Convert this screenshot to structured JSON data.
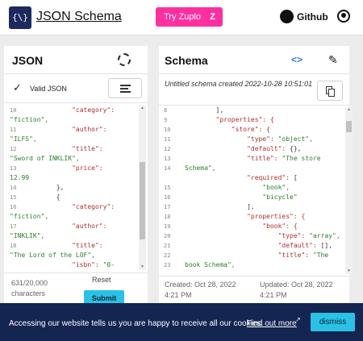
{
  "header": {
    "logo_glyph": "{\\}",
    "brand": "JSON Schema",
    "try_button": "Try Zuplo",
    "try_icon": "Z",
    "github_label": "Github",
    "icons": [
      "github-icon",
      "account-icon"
    ],
    "accent_color": "#ff2fa0"
  },
  "json_panel": {
    "title": "JSON",
    "valid_check": "✓",
    "valid_text": "Valid JSON",
    "line_numbers": [
      "10",
      "11",
      "12",
      "13",
      "14",
      "15",
      "16",
      "17",
      "18"
    ],
    "code_lines": [
      {
        "parts": [
          {
            "t": "                \"category\": ",
            "c": "k"
          }
        ]
      },
      {
        "parts": [
          {
            "t": "\"fiction\",",
            "c": "s"
          }
        ]
      },
      {
        "parts": [
          {
            "t": "                \"author\": ",
            "c": "k"
          }
        ]
      },
      {
        "parts": [
          {
            "t": "\"ILFS\",",
            "c": "s"
          }
        ]
      },
      {
        "parts": [
          {
            "t": "                \"title\": ",
            "c": "k"
          }
        ]
      },
      {
        "parts": [
          {
            "t": "\"Sword of INKLIK\",",
            "c": "s"
          }
        ]
      },
      {
        "parts": [
          {
            "t": "                \"price\": ",
            "c": "k"
          }
        ]
      },
      {
        "parts": [
          {
            "t": "12.99",
            "c": "s"
          }
        ]
      },
      {
        "parts": [
          {
            "t": "            },",
            "c": "p"
          }
        ]
      },
      {
        "parts": [
          {
            "t": "            {",
            "c": "p"
          }
        ]
      },
      {
        "parts": [
          {
            "t": "                \"category\": ",
            "c": "k"
          }
        ]
      },
      {
        "parts": [
          {
            "t": "\"fiction\",",
            "c": "s"
          }
        ]
      },
      {
        "parts": [
          {
            "t": "                \"author\": ",
            "c": "k"
          }
        ]
      },
      {
        "parts": [
          {
            "t": "\"INKLIK\",",
            "c": "s"
          }
        ]
      },
      {
        "parts": [
          {
            "t": "                \"title\": ",
            "c": "k"
          }
        ]
      },
      {
        "parts": [
          {
            "t": "\"The Lord of the LOF\",",
            "c": "s"
          }
        ]
      },
      {
        "parts": [
          {
            "t": "                \"isbn\": ",
            "c": "k"
          },
          {
            "t": "\"0-",
            "c": "s"
          }
        ]
      }
    ],
    "char_count": "631/20,000",
    "char_unit": "characters",
    "reset_label": "Reset",
    "submit_label": "Submit",
    "submit_color": "#29c2e6"
  },
  "schema_panel": {
    "title": "Schema",
    "toggle_glyph": "<>",
    "edit_glyph": "✎",
    "subtitle": "Untitled schema created 2022-10-28 10:51:01",
    "line_numbers": [
      "8",
      "9",
      "10",
      "11",
      "12",
      "13",
      "14",
      "",
      "15",
      "16",
      "17",
      "18",
      "19",
      "20",
      "21",
      "22",
      "23"
    ],
    "code_lines": [
      {
        "parts": [
          {
            "t": "        ],",
            "c": "p"
          }
        ]
      },
      {
        "parts": [
          {
            "t": "        \"properties\": {",
            "c": "k"
          }
        ]
      },
      {
        "parts": [
          {
            "t": "            \"store\": {",
            "c": "k"
          }
        ]
      },
      {
        "parts": [
          {
            "t": "                \"type\": ",
            "c": "k"
          },
          {
            "t": "\"object\",",
            "c": "s"
          }
        ]
      },
      {
        "parts": [
          {
            "t": "                \"default\": ",
            "c": "k"
          },
          {
            "t": "{},",
            "c": "p"
          }
        ]
      },
      {
        "parts": [
          {
            "t": "                \"title\": ",
            "c": "k"
          },
          {
            "t": "\"The store",
            "c": "s"
          }
        ]
      },
      {
        "parts": [
          {
            "t": "Schema\",",
            "c": "s"
          }
        ]
      },
      {
        "parts": [
          {
            "t": "                \"required\": ",
            "c": "k"
          },
          {
            "t": "[",
            "c": "p"
          }
        ]
      },
      {
        "parts": [
          {
            "t": "                    \"book\",",
            "c": "s"
          }
        ]
      },
      {
        "parts": [
          {
            "t": "                    \"bicycle\"",
            "c": "s"
          }
        ]
      },
      {
        "parts": [
          {
            "t": "                ],",
            "c": "p"
          }
        ]
      },
      {
        "parts": [
          {
            "t": "                \"properties\": {",
            "c": "k"
          }
        ]
      },
      {
        "parts": [
          {
            "t": "                    \"book\": {",
            "c": "k"
          }
        ]
      },
      {
        "parts": [
          {
            "t": "                        \"type\": ",
            "c": "k"
          },
          {
            "t": "\"array\",",
            "c": "s"
          }
        ]
      },
      {
        "parts": [
          {
            "t": "                        \"default\": ",
            "c": "k"
          },
          {
            "t": "[],",
            "c": "p"
          }
        ]
      },
      {
        "parts": [
          {
            "t": "                        \"title\": ",
            "c": "k"
          },
          {
            "t": "\"The",
            "c": "s"
          }
        ]
      },
      {
        "parts": [
          {
            "t": "book Schema\",",
            "c": "s"
          }
        ]
      }
    ],
    "created": "Created: Oct 28, 2022",
    "created_time": "4:21 PM",
    "updated": "Updated: Oct 28, 2022",
    "updated_time": "4:21 PM"
  },
  "cookie_banner": {
    "text": "Accessing our website tells us you are happy to receive all our cookies.",
    "link": "Find out more",
    "link_glyph": "↗",
    "dismiss_label": "dismiss",
    "background": "#142552"
  }
}
